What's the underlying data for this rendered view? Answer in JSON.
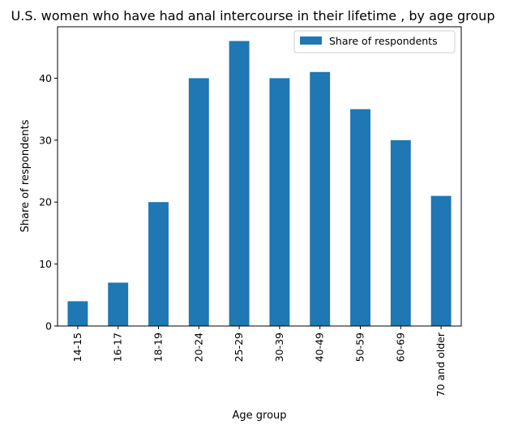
{
  "chart_data": {
    "type": "bar",
    "title": "U.S. women who have had anal intercourse in their lifetime , by age group",
    "xlabel": "Age group",
    "ylabel": "Share of respondents",
    "categories": [
      "14-15",
      "16-17",
      "18-19",
      "20-24",
      "25-29",
      "30-39",
      "40-49",
      "50-59",
      "60-69",
      "70 and older"
    ],
    "series": [
      {
        "name": "Share of respondents",
        "values": [
          4,
          7,
          20,
          40,
          46,
          40,
          41,
          35,
          30,
          21
        ]
      }
    ],
    "yticks": [
      "0",
      "10",
      "20",
      "30",
      "40"
    ],
    "ylim": [
      0,
      48.3
    ],
    "grid": false,
    "legend_position": "top-right",
    "colors": {
      "bar": "#1f77b4"
    }
  }
}
